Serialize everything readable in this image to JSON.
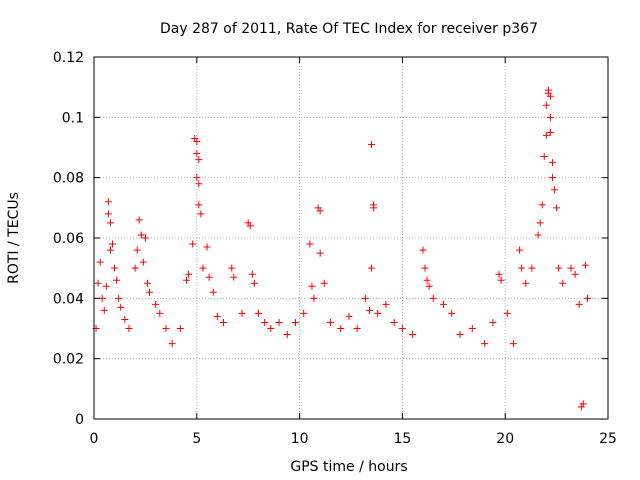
{
  "chart_data": {
    "type": "scatter",
    "title": "Day 287 of 2011, Rate Of TEC Index for receiver p367",
    "xlabel": "GPS time / hours",
    "ylabel": "ROTI / TECUs",
    "xlim": [
      0,
      25
    ],
    "ylim": [
      0,
      0.12
    ],
    "x_ticks": [
      0,
      5,
      10,
      15,
      20,
      25
    ],
    "y_ticks": [
      0,
      0.02,
      0.04,
      0.06,
      0.08,
      0.1,
      0.12
    ],
    "x_tick_labels": [
      "0",
      "5",
      "10",
      "15",
      "20",
      "25"
    ],
    "y_tick_labels": [
      "0",
      "0.02",
      "0.04",
      "0.06",
      "0.08",
      "0.1",
      "0.12"
    ],
    "grid": true,
    "marker": "plus",
    "color": "#ff0000",
    "series": [
      {
        "name": "",
        "points": [
          [
            0.1,
            0.03
          ],
          [
            0.2,
            0.045
          ],
          [
            0.3,
            0.052
          ],
          [
            0.4,
            0.04
          ],
          [
            0.5,
            0.036
          ],
          [
            0.6,
            0.044
          ],
          [
            0.7,
            0.072
          ],
          [
            0.7,
            0.068
          ],
          [
            0.8,
            0.065
          ],
          [
            0.8,
            0.056
          ],
          [
            0.9,
            0.058
          ],
          [
            1.0,
            0.05
          ],
          [
            1.1,
            0.046
          ],
          [
            1.2,
            0.04
          ],
          [
            1.3,
            0.037
          ],
          [
            1.5,
            0.033
          ],
          [
            1.7,
            0.03
          ],
          [
            2.0,
            0.05
          ],
          [
            2.1,
            0.056
          ],
          [
            2.2,
            0.066
          ],
          [
            2.3,
            0.061
          ],
          [
            2.4,
            0.052
          ],
          [
            2.5,
            0.06
          ],
          [
            2.6,
            0.045
          ],
          [
            2.7,
            0.042
          ],
          [
            3.0,
            0.038
          ],
          [
            3.2,
            0.035
          ],
          [
            3.5,
            0.03
          ],
          [
            3.8,
            0.025
          ],
          [
            4.2,
            0.03
          ],
          [
            4.5,
            0.046
          ],
          [
            4.6,
            0.048
          ],
          [
            4.8,
            0.058
          ],
          [
            4.9,
            0.093
          ],
          [
            5.0,
            0.092
          ],
          [
            5.0,
            0.088
          ],
          [
            5.0,
            0.08
          ],
          [
            5.1,
            0.078
          ],
          [
            5.1,
            0.071
          ],
          [
            5.2,
            0.068
          ],
          [
            5.1,
            0.086
          ],
          [
            5.3,
            0.05
          ],
          [
            5.5,
            0.057
          ],
          [
            5.6,
            0.047
          ],
          [
            5.8,
            0.042
          ],
          [
            6.0,
            0.034
          ],
          [
            6.3,
            0.032
          ],
          [
            6.7,
            0.05
          ],
          [
            6.8,
            0.047
          ],
          [
            7.2,
            0.035
          ],
          [
            7.5,
            0.065
          ],
          [
            7.6,
            0.064
          ],
          [
            7.7,
            0.048
          ],
          [
            7.8,
            0.045
          ],
          [
            8.0,
            0.035
          ],
          [
            8.3,
            0.032
          ],
          [
            8.6,
            0.03
          ],
          [
            9.0,
            0.032
          ],
          [
            9.4,
            0.028
          ],
          [
            9.8,
            0.032
          ],
          [
            10.2,
            0.035
          ],
          [
            10.5,
            0.058
          ],
          [
            10.6,
            0.044
          ],
          [
            10.7,
            0.04
          ],
          [
            10.9,
            0.07
          ],
          [
            11.0,
            0.069
          ],
          [
            11.0,
            0.055
          ],
          [
            11.2,
            0.045
          ],
          [
            11.5,
            0.032
          ],
          [
            12.0,
            0.03
          ],
          [
            12.4,
            0.034
          ],
          [
            12.8,
            0.03
          ],
          [
            13.2,
            0.04
          ],
          [
            13.4,
            0.036
          ],
          [
            13.5,
            0.091
          ],
          [
            13.6,
            0.071
          ],
          [
            13.6,
            0.07
          ],
          [
            13.5,
            0.05
          ],
          [
            13.8,
            0.035
          ],
          [
            14.2,
            0.038
          ],
          [
            14.6,
            0.032
          ],
          [
            15.0,
            0.03
          ],
          [
            15.5,
            0.028
          ],
          [
            16.0,
            0.056
          ],
          [
            16.1,
            0.05
          ],
          [
            16.2,
            0.046
          ],
          [
            16.3,
            0.044
          ],
          [
            16.5,
            0.04
          ],
          [
            17.0,
            0.038
          ],
          [
            17.4,
            0.035
          ],
          [
            17.8,
            0.028
          ],
          [
            18.4,
            0.03
          ],
          [
            19.0,
            0.025
          ],
          [
            19.4,
            0.032
          ],
          [
            19.7,
            0.048
          ],
          [
            19.8,
            0.046
          ],
          [
            20.1,
            0.035
          ],
          [
            20.4,
            0.025
          ],
          [
            20.7,
            0.056
          ],
          [
            20.8,
            0.05
          ],
          [
            21.0,
            0.045
          ],
          [
            21.3,
            0.05
          ],
          [
            21.6,
            0.061
          ],
          [
            21.7,
            0.065
          ],
          [
            21.8,
            0.071
          ],
          [
            21.9,
            0.087
          ],
          [
            22.0,
            0.094
          ],
          [
            22.0,
            0.104
          ],
          [
            22.1,
            0.108
          ],
          [
            22.1,
            0.109
          ],
          [
            22.2,
            0.107
          ],
          [
            22.2,
            0.1
          ],
          [
            22.2,
            0.095
          ],
          [
            22.3,
            0.085
          ],
          [
            22.3,
            0.08
          ],
          [
            22.4,
            0.076
          ],
          [
            22.5,
            0.07
          ],
          [
            22.6,
            0.05
          ],
          [
            22.8,
            0.045
          ],
          [
            23.2,
            0.05
          ],
          [
            23.4,
            0.048
          ],
          [
            23.6,
            0.038
          ],
          [
            23.9,
            0.051
          ],
          [
            24.0,
            0.04
          ],
          [
            23.7,
            0.004
          ],
          [
            23.8,
            0.005
          ]
        ]
      }
    ]
  }
}
